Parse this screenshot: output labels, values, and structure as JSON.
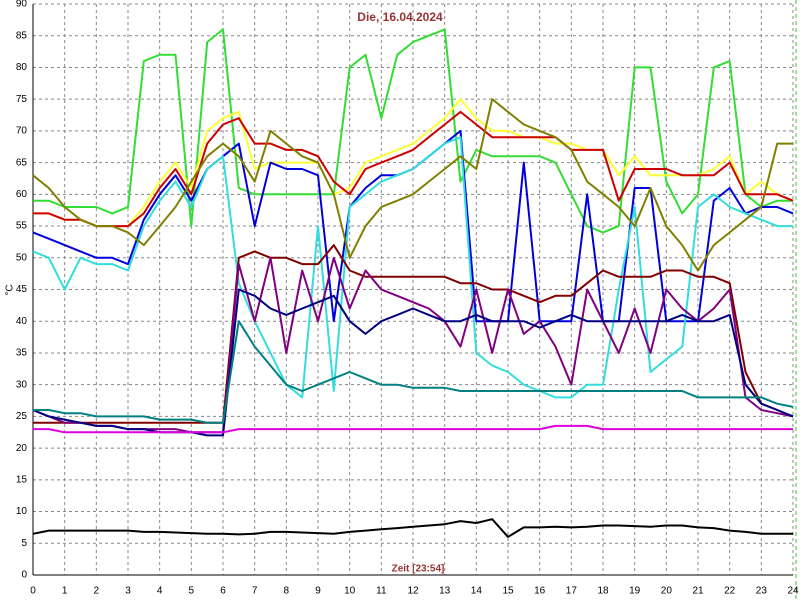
{
  "chart_data": {
    "type": "line",
    "title": "Die, 16.04.2024",
    "xlabel": "Zeit [23:54]",
    "ylabel": "°C",
    "x": [
      0,
      0.5,
      1,
      1.5,
      2,
      2.5,
      3,
      3.5,
      4,
      4.5,
      5,
      5.5,
      6,
      6.5,
      7,
      7.5,
      8,
      8.5,
      9,
      9.5,
      10,
      10.5,
      11,
      11.5,
      12,
      12.5,
      13,
      13.5,
      14,
      14.5,
      15,
      15.5,
      16,
      16.5,
      17,
      17.5,
      18,
      18.5,
      19,
      19.5,
      20,
      20.5,
      21,
      21.5,
      22,
      22.5,
      23,
      23.5,
      24
    ],
    "xlim": [
      0,
      24
    ],
    "xticks": [
      0,
      1,
      2,
      3,
      4,
      5,
      6,
      7,
      8,
      9,
      10,
      11,
      12,
      13,
      14,
      15,
      16,
      17,
      18,
      19,
      20,
      21,
      22,
      23,
      24
    ],
    "ylim": [
      0,
      90
    ],
    "yticks": [
      0,
      5,
      10,
      15,
      20,
      25,
      30,
      35,
      40,
      45,
      50,
      55,
      60,
      65,
      70,
      75,
      80,
      85,
      90
    ],
    "grid": true,
    "series": [
      {
        "color": "#33dd33",
        "values": [
          59,
          59,
          58,
          58,
          58,
          57,
          58,
          81,
          82,
          82,
          55,
          84,
          86,
          61,
          60,
          60,
          60,
          60,
          60,
          60,
          80,
          82,
          72,
          82,
          84,
          85,
          86,
          62,
          67,
          66,
          66,
          66,
          66,
          65,
          60,
          55,
          54,
          55,
          80,
          80,
          62,
          57,
          60,
          80,
          81,
          60,
          58,
          59,
          59
        ]
      },
      {
        "color": "#ffff33",
        "values": [
          57,
          57,
          56,
          56,
          55,
          55,
          55,
          58,
          62,
          65,
          61,
          70,
          72,
          73,
          64,
          65,
          65,
          65,
          65,
          60,
          61,
          65,
          66,
          67,
          68,
          70,
          72,
          75,
          72,
          70,
          70,
          69,
          69,
          68,
          68,
          67,
          67,
          63,
          66,
          63,
          63,
          63,
          63,
          64,
          66,
          60,
          62,
          60,
          59
        ]
      },
      {
        "color": "#cc0000",
        "values": [
          57,
          57,
          56,
          56,
          55,
          55,
          55,
          57,
          61,
          64,
          60,
          68,
          71,
          72,
          68,
          68,
          67,
          67,
          66,
          62,
          60,
          64,
          65,
          66,
          67,
          69,
          71,
          73,
          71,
          69,
          69,
          69,
          69,
          69,
          67,
          67,
          67,
          59,
          64,
          64,
          64,
          63,
          63,
          63,
          65,
          60,
          60,
          60,
          59
        ]
      },
      {
        "color": "#0000dd",
        "values": [
          54,
          53,
          52,
          51,
          50,
          50,
          49,
          56,
          60,
          63,
          59,
          64,
          66,
          68,
          55,
          65,
          64,
          64,
          63,
          40,
          58,
          61,
          63,
          63,
          64,
          66,
          68,
          70,
          40,
          40,
          40,
          65,
          40,
          40,
          40,
          60,
          40,
          40,
          61,
          61,
          40,
          40,
          40,
          59,
          61,
          57,
          58,
          58,
          57
        ]
      },
      {
        "color": "#33dddd",
        "values": [
          51,
          50,
          45,
          50,
          49,
          49,
          48,
          55,
          59,
          62,
          58,
          64,
          66,
          46,
          40,
          35,
          30,
          28,
          55,
          29,
          58,
          60,
          62,
          63,
          64,
          66,
          68,
          69,
          35,
          33,
          32,
          30,
          29,
          28,
          28,
          30,
          30,
          45,
          58,
          32,
          34,
          36,
          58,
          60,
          58,
          57,
          56,
          55,
          55
        ]
      },
      {
        "color": "#808000",
        "values": [
          63,
          61,
          58,
          56,
          55,
          55,
          54,
          52,
          55,
          58,
          62,
          66,
          68,
          66,
          62,
          70,
          68,
          66,
          65,
          60,
          50,
          55,
          58,
          59,
          60,
          62,
          64,
          66,
          64,
          75,
          73,
          71,
          70,
          69,
          67,
          62,
          60,
          58,
          55,
          61,
          55,
          52,
          48,
          52,
          54,
          56,
          58,
          68,
          68
        ]
      },
      {
        "color": "#800000",
        "values": [
          24,
          24,
          24,
          24,
          24,
          24,
          24,
          24,
          24,
          24,
          24,
          24,
          24,
          50,
          51,
          50,
          50,
          49,
          49,
          52,
          48,
          47,
          47,
          47,
          47,
          47,
          47,
          46,
          46,
          45,
          45,
          44,
          43,
          44,
          44,
          46,
          48,
          47,
          47,
          47,
          48,
          48,
          47,
          47,
          46,
          32,
          27,
          26,
          25
        ]
      },
      {
        "color": "#800080",
        "values": [
          26,
          25,
          24,
          24,
          23.5,
          23.5,
          23,
          23,
          23,
          23,
          22.5,
          22.5,
          22.5,
          49,
          40,
          50,
          35,
          48,
          40,
          50,
          42,
          48,
          45,
          44,
          43,
          42,
          40,
          36,
          45,
          35,
          45,
          38,
          40,
          36,
          30,
          45,
          40,
          35,
          42,
          35,
          45,
          42,
          40,
          42,
          45,
          28,
          26,
          25.5,
          25
        ]
      },
      {
        "color": "#000080",
        "values": [
          26,
          25,
          24.5,
          24,
          23.5,
          23.5,
          23,
          23,
          22.5,
          22.5,
          22.5,
          22,
          22,
          45,
          44,
          42,
          41,
          42,
          43,
          44,
          40,
          38,
          40,
          41,
          42,
          41,
          40,
          40,
          41,
          40,
          40,
          40,
          39,
          40,
          41,
          40,
          40,
          40,
          40,
          40,
          40,
          41,
          40,
          40,
          41,
          30,
          27,
          26,
          25
        ]
      },
      {
        "color": "#008080",
        "values": [
          26,
          26,
          25.5,
          25.5,
          25,
          25,
          25,
          25,
          24.5,
          24.5,
          24.5,
          24,
          24,
          40,
          36,
          33,
          30,
          29,
          30,
          31,
          32,
          31,
          30,
          30,
          29.5,
          29.5,
          29.5,
          29,
          29,
          29,
          29,
          29,
          29,
          29,
          29,
          29,
          29,
          29,
          29,
          29,
          29,
          29,
          28,
          28,
          28,
          28,
          28,
          27,
          26.5
        ]
      },
      {
        "color": "#dd00dd",
        "values": [
          23,
          23,
          22.5,
          22.5,
          22.5,
          22.5,
          22.5,
          22.5,
          22.5,
          22.5,
          22.5,
          22.5,
          22.5,
          23,
          23,
          23,
          23,
          23,
          23,
          23,
          23,
          23,
          23,
          23,
          23,
          23,
          23,
          23,
          23,
          23,
          23,
          23,
          23,
          23.5,
          23.5,
          23.5,
          23,
          23,
          23,
          23,
          23,
          23,
          23,
          23,
          23,
          23,
          23,
          23,
          23
        ]
      },
      {
        "color": "#000000",
        "values": [
          6.5,
          7,
          7,
          7,
          7,
          7,
          7,
          6.8,
          6.8,
          6.7,
          6.6,
          6.5,
          6.5,
          6.4,
          6.5,
          6.8,
          6.8,
          6.7,
          6.6,
          6.5,
          6.8,
          7,
          7.2,
          7.4,
          7.6,
          7.8,
          8,
          8.5,
          8.2,
          8.8,
          6,
          7.5,
          7.5,
          7.6,
          7.5,
          7.6,
          7.8,
          7.8,
          7.7,
          7.6,
          7.8,
          7.8,
          7.5,
          7.4,
          7,
          6.8,
          6.5,
          6.5,
          6.5
        ]
      }
    ]
  }
}
